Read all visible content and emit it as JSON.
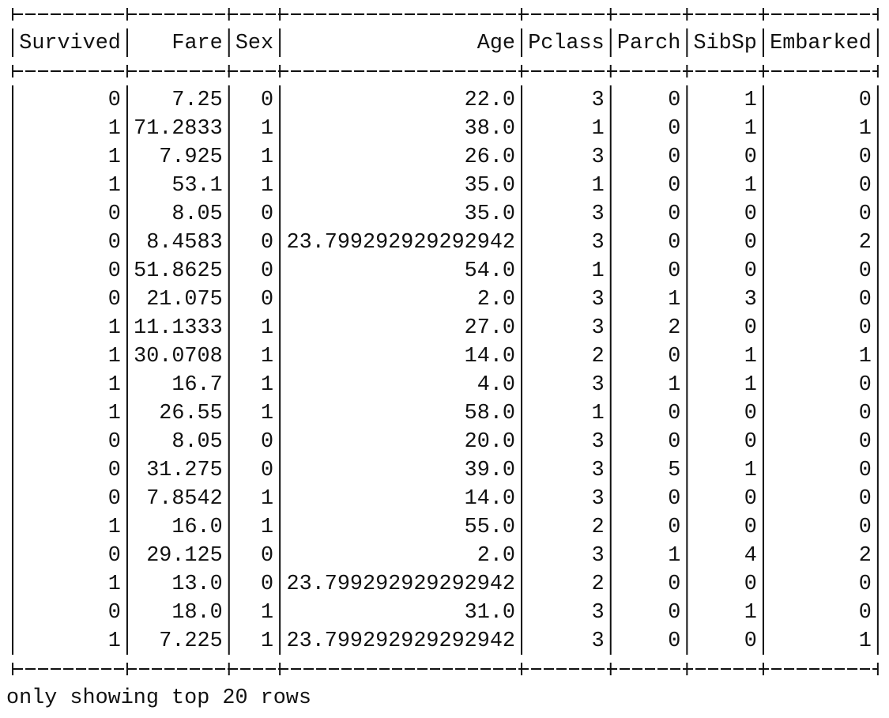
{
  "table": {
    "columns": [
      "Survived",
      "Fare",
      "Sex",
      "Age",
      "Pclass",
      "Parch",
      "SibSp",
      "Embarked"
    ],
    "rows": [
      [
        "0",
        "7.25",
        "0",
        "22.0",
        "3",
        "0",
        "1",
        "0"
      ],
      [
        "1",
        "71.2833",
        "1",
        "38.0",
        "1",
        "0",
        "1",
        "1"
      ],
      [
        "1",
        "7.925",
        "1",
        "26.0",
        "3",
        "0",
        "0",
        "0"
      ],
      [
        "1",
        "53.1",
        "1",
        "35.0",
        "1",
        "0",
        "1",
        "0"
      ],
      [
        "0",
        "8.05",
        "0",
        "35.0",
        "3",
        "0",
        "0",
        "0"
      ],
      [
        "0",
        "8.4583",
        "0",
        "23.799292929292942",
        "3",
        "0",
        "0",
        "2"
      ],
      [
        "0",
        "51.8625",
        "0",
        "54.0",
        "1",
        "0",
        "0",
        "0"
      ],
      [
        "0",
        "21.075",
        "0",
        "2.0",
        "3",
        "1",
        "3",
        "0"
      ],
      [
        "1",
        "11.1333",
        "1",
        "27.0",
        "3",
        "2",
        "0",
        "0"
      ],
      [
        "1",
        "30.0708",
        "1",
        "14.0",
        "2",
        "0",
        "1",
        "1"
      ],
      [
        "1",
        "16.7",
        "1",
        "4.0",
        "3",
        "1",
        "1",
        "0"
      ],
      [
        "1",
        "26.55",
        "1",
        "58.0",
        "1",
        "0",
        "0",
        "0"
      ],
      [
        "0",
        "8.05",
        "0",
        "20.0",
        "3",
        "0",
        "0",
        "0"
      ],
      [
        "0",
        "31.275",
        "0",
        "39.0",
        "3",
        "5",
        "1",
        "0"
      ],
      [
        "0",
        "7.8542",
        "1",
        "14.0",
        "3",
        "0",
        "0",
        "0"
      ],
      [
        "1",
        "16.0",
        "1",
        "55.0",
        "2",
        "0",
        "0",
        "0"
      ],
      [
        "0",
        "29.125",
        "0",
        "2.0",
        "3",
        "1",
        "4",
        "2"
      ],
      [
        "1",
        "13.0",
        "0",
        "23.799292929292942",
        "2",
        "0",
        "0",
        "0"
      ],
      [
        "0",
        "18.0",
        "1",
        "31.0",
        "3",
        "0",
        "1",
        "0"
      ],
      [
        "1",
        "7.225",
        "1",
        "23.799292929292942",
        "3",
        "0",
        "0",
        "1"
      ]
    ]
  },
  "footer": "only showing top 20 rows"
}
